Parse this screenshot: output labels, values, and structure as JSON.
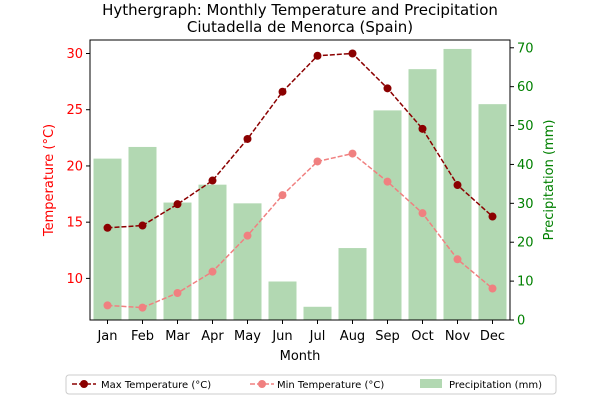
{
  "chart_data": {
    "type": "bar+line",
    "title": "Hythergraph: Monthly Temperature and Precipitation",
    "subtitle": "Ciutadella de Menorca (Spain)",
    "xlabel": "Month",
    "ylabel_left": "Temperature (°C)",
    "ylabel_right": "Precipitation (mm)",
    "categories": [
      "Jan",
      "Feb",
      "Mar",
      "Apr",
      "May",
      "Jun",
      "Jul",
      "Aug",
      "Sep",
      "Oct",
      "Nov",
      "Dec"
    ],
    "y_left_range": [
      6.3,
      31.2
    ],
    "y_left_ticks": [
      10,
      15,
      20,
      25,
      30
    ],
    "y_right_range": [
      0,
      72
    ],
    "y_right_ticks": [
      0,
      10,
      20,
      30,
      40,
      50,
      60,
      70
    ],
    "series": [
      {
        "name": "Max Temperature (°C)",
        "kind": "line",
        "axis": "left",
        "color": "#8b0000",
        "values": [
          14.5,
          14.7,
          16.6,
          18.7,
          22.4,
          26.6,
          29.8,
          30.0,
          26.9,
          23.3,
          18.3,
          15.5
        ]
      },
      {
        "name": "Min Temperature (°C)",
        "kind": "line",
        "axis": "left",
        "color": "#f08080",
        "values": [
          7.6,
          7.4,
          8.7,
          10.6,
          13.8,
          17.4,
          20.4,
          21.1,
          18.6,
          15.8,
          11.7,
          9.1
        ]
      },
      {
        "name": "Precipitation (mm)",
        "kind": "bar",
        "axis": "right",
        "color": "#b2d8b2",
        "values": [
          41.5,
          44.5,
          30.2,
          34.8,
          30.0,
          9.9,
          3.4,
          18.5,
          53.9,
          64.5,
          69.7,
          55.5
        ]
      }
    ],
    "legend_position": "bottom-center",
    "grid": false
  },
  "colors": {
    "left_axis": "#ff0000",
    "right_axis": "#008000"
  }
}
